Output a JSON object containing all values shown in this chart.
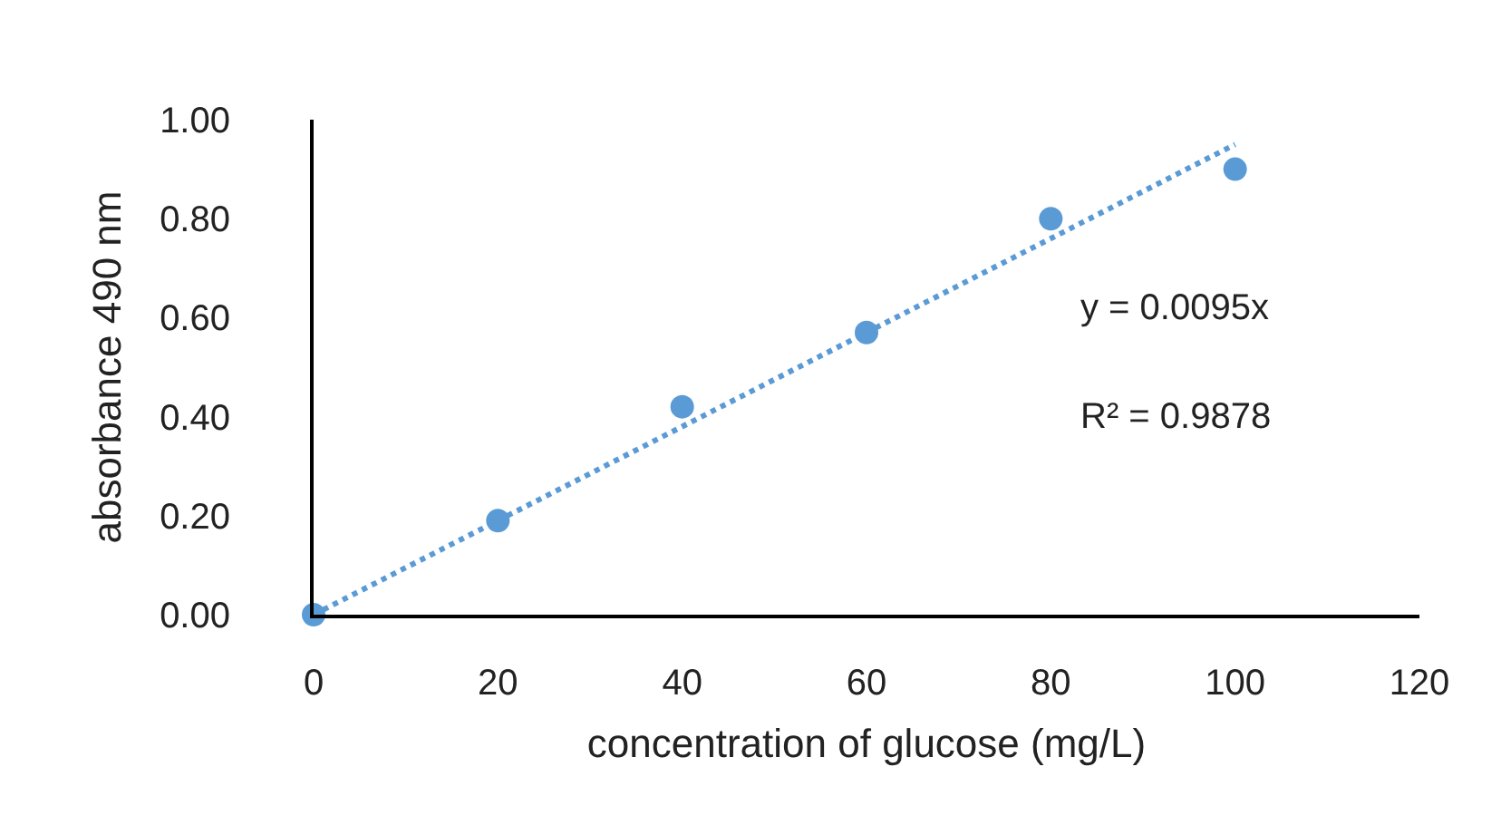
{
  "chart_data": {
    "type": "scatter",
    "xlabel": "concentration of glucose (mg/L)",
    "ylabel": "absorbance 490 nm",
    "x": [
      0,
      20,
      40,
      60,
      80,
      100
    ],
    "series": [
      {
        "color": "#5b9bd5",
        "values": [
          0.0,
          0.19,
          0.42,
          0.57,
          0.8,
          0.9
        ],
        "marker": "circle"
      },
      {
        "type": "line",
        "color": "#5b9bd5",
        "x": [
          0,
          100
        ],
        "values": [
          0.0,
          0.95
        ],
        "line_style": "dotted",
        "marker": "none"
      }
    ],
    "xlim": [
      0,
      120
    ],
    "xticks": [
      0,
      20,
      40,
      60,
      80,
      100,
      120
    ],
    "ylim": [
      0,
      1
    ],
    "yticks": [
      {
        "value": 0,
        "label": "0.00"
      },
      {
        "value": 0.2,
        "label": "0.20"
      },
      {
        "value": 0.4,
        "label": "0.40"
      },
      {
        "value": 0.6,
        "label": "0.60"
      },
      {
        "value": 0.8,
        "label": "0.80"
      },
      {
        "value": 1,
        "label": "1.00"
      }
    ],
    "annotations": [
      "y = 0.0095x",
      "R² = 0.9878"
    ]
  }
}
